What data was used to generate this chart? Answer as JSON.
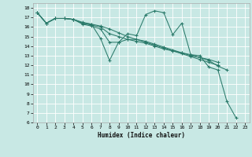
{
  "xlabel": "Humidex (Indice chaleur)",
  "xlim": [
    -0.5,
    23.5
  ],
  "ylim": [
    6,
    18.5
  ],
  "xticks": [
    0,
    1,
    2,
    3,
    4,
    5,
    6,
    7,
    8,
    9,
    10,
    11,
    12,
    13,
    14,
    15,
    16,
    17,
    18,
    19,
    20,
    21,
    22,
    23
  ],
  "yticks": [
    6,
    7,
    8,
    9,
    10,
    11,
    12,
    13,
    14,
    15,
    16,
    17,
    18
  ],
  "bg_color": "#c8e8e4",
  "grid_color": "#ffffff",
  "line_color": "#2a7a6a",
  "lines": [
    {
      "x": [
        0,
        1,
        2,
        3,
        4,
        5,
        6,
        7,
        8,
        9,
        10,
        11,
        12,
        13,
        14,
        15,
        16,
        17,
        18,
        19,
        20,
        21,
        22
      ],
      "y": [
        17.5,
        16.4,
        16.9,
        16.9,
        16.8,
        16.5,
        16.3,
        14.8,
        12.5,
        14.4,
        15.3,
        15.1,
        17.3,
        17.7,
        17.5,
        15.2,
        16.4,
        13.1,
        13.0,
        11.8,
        11.5,
        8.2,
        6.5
      ]
    },
    {
      "x": [
        0,
        1,
        2,
        3,
        4,
        5,
        6,
        7,
        8,
        9,
        10,
        11,
        12,
        13,
        14,
        15,
        16,
        17,
        18,
        19,
        20,
        21
      ],
      "y": [
        17.5,
        16.4,
        16.9,
        16.9,
        16.8,
        16.3,
        16.1,
        15.8,
        14.4,
        14.4,
        14.7,
        14.7,
        14.5,
        14.2,
        13.9,
        13.6,
        13.3,
        13.0,
        12.8,
        12.5,
        11.9,
        11.5
      ]
    },
    {
      "x": [
        0,
        1,
        2,
        3,
        4,
        5,
        6,
        7,
        8,
        9,
        10,
        11,
        12,
        13,
        14,
        15,
        16,
        17,
        18,
        19,
        20
      ],
      "y": [
        17.5,
        16.4,
        16.9,
        16.9,
        16.8,
        16.4,
        16.2,
        16.0,
        15.3,
        15.0,
        14.7,
        14.5,
        14.3,
        14.0,
        13.7,
        13.5,
        13.3,
        13.1,
        12.8,
        12.6,
        12.3
      ]
    },
    {
      "x": [
        0,
        1,
        2,
        3,
        4,
        5,
        6,
        7,
        8,
        9,
        10,
        11,
        12,
        13,
        14,
        15,
        16,
        17,
        18,
        19,
        20
      ],
      "y": [
        17.5,
        16.4,
        16.9,
        16.9,
        16.8,
        16.4,
        16.3,
        16.1,
        15.8,
        15.4,
        15.0,
        14.7,
        14.4,
        14.1,
        13.8,
        13.5,
        13.2,
        12.9,
        12.6,
        12.3,
        12.0
      ]
    }
  ]
}
